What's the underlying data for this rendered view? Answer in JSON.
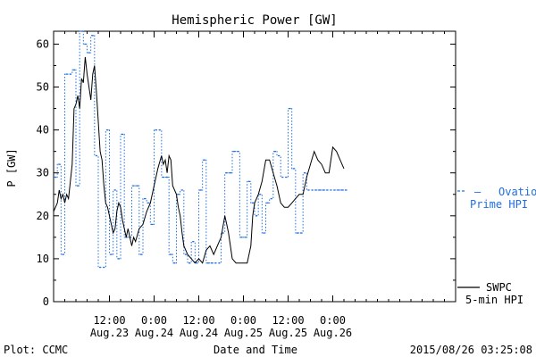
{
  "chart_data": {
    "type": "line",
    "title": "Hemispheric Power [GW]",
    "ylabel": "P [GW]",
    "xlabel": "Date and Time",
    "ylim": [
      0,
      63
    ],
    "yticks": [
      0,
      10,
      20,
      30,
      40,
      50,
      60
    ],
    "xlim": [
      0,
      108
    ],
    "x_unit": "hours since 2015-08-22 21:00",
    "xticks": [
      {
        "x": 15,
        "time": "12:00",
        "date": "Aug.23"
      },
      {
        "x": 27,
        "time": "0:00",
        "date": "Aug.24"
      },
      {
        "x": 39,
        "time": "12:00",
        "date": "Aug.24"
      },
      {
        "x": 51,
        "time": "0:00",
        "date": "Aug.25"
      },
      {
        "x": 63,
        "time": "12:00",
        "date": "Aug.25"
      },
      {
        "x": 75,
        "time": "0:00",
        "date": "Aug.26"
      }
    ],
    "grid": false,
    "series": [
      {
        "name": "SWPC 5-min HPI",
        "color": "#000000",
        "style": "solid",
        "points": [
          [
            0,
            21
          ],
          [
            1,
            23
          ],
          [
            1.5,
            26
          ],
          [
            2,
            24
          ],
          [
            2.5,
            25
          ],
          [
            3,
            23
          ],
          [
            3.5,
            25
          ],
          [
            4,
            24
          ],
          [
            5,
            32
          ],
          [
            5.5,
            45
          ],
          [
            6,
            46
          ],
          [
            6.5,
            48
          ],
          [
            7,
            45
          ],
          [
            7.5,
            52
          ],
          [
            8,
            51
          ],
          [
            8.5,
            57
          ],
          [
            9,
            53
          ],
          [
            9.5,
            50
          ],
          [
            10,
            47
          ],
          [
            10.5,
            53
          ],
          [
            11,
            55
          ],
          [
            11.5,
            49
          ],
          [
            12,
            42
          ],
          [
            12.5,
            35
          ],
          [
            13,
            33
          ],
          [
            13.5,
            27
          ],
          [
            14,
            23
          ],
          [
            14.5,
            22
          ],
          [
            15,
            20
          ],
          [
            15.5,
            18
          ],
          [
            16,
            16
          ],
          [
            16.5,
            17
          ],
          [
            17,
            21
          ],
          [
            17.5,
            23
          ],
          [
            18,
            22
          ],
          [
            18.5,
            19
          ],
          [
            19,
            17
          ],
          [
            19.5,
            15
          ],
          [
            20,
            17
          ],
          [
            20.5,
            15
          ],
          [
            21,
            13
          ],
          [
            21.5,
            15
          ],
          [
            22,
            14
          ],
          [
            23,
            17
          ],
          [
            24,
            18
          ],
          [
            25,
            21
          ],
          [
            26,
            23
          ],
          [
            27,
            27
          ],
          [
            28,
            31
          ],
          [
            29,
            34
          ],
          [
            29.5,
            32
          ],
          [
            30,
            33
          ],
          [
            30.5,
            30
          ],
          [
            31,
            34
          ],
          [
            31.5,
            33
          ],
          [
            32,
            27
          ],
          [
            33,
            25
          ],
          [
            33.5,
            22
          ],
          [
            34,
            20
          ],
          [
            34.5,
            16
          ],
          [
            35,
            13
          ],
          [
            36,
            11
          ],
          [
            37,
            10
          ],
          [
            38,
            9
          ],
          [
            39,
            10
          ],
          [
            40,
            9
          ],
          [
            41,
            12
          ],
          [
            42,
            13
          ],
          [
            43,
            11
          ],
          [
            44,
            13
          ],
          [
            45,
            15
          ],
          [
            46,
            20
          ],
          [
            46.5,
            18
          ],
          [
            47,
            16
          ],
          [
            47.5,
            13
          ],
          [
            48,
            10
          ],
          [
            49,
            9
          ],
          [
            50,
            9
          ],
          [
            51,
            9
          ],
          [
            52,
            9
          ],
          [
            53,
            13
          ],
          [
            53.5,
            20
          ],
          [
            54,
            23
          ],
          [
            55,
            25
          ],
          [
            56,
            28
          ],
          [
            57,
            33
          ],
          [
            58,
            33
          ],
          [
            59,
            30
          ],
          [
            60,
            27
          ],
          [
            61,
            23
          ],
          [
            62,
            22
          ],
          [
            63,
            22
          ],
          [
            64,
            23
          ],
          [
            65,
            24
          ],
          [
            66,
            25
          ],
          [
            67,
            25
          ],
          [
            68,
            29
          ],
          [
            69,
            32
          ],
          [
            70,
            35
          ],
          [
            71,
            33
          ],
          [
            72,
            32
          ],
          [
            73,
            30
          ],
          [
            74,
            30
          ],
          [
            75,
            36
          ],
          [
            76,
            35
          ],
          [
            77,
            33
          ],
          [
            78,
            31
          ]
        ]
      },
      {
        "name": "Ovation Prime HPI",
        "color": "#1f6fe0",
        "style": "dashed",
        "points": [
          [
            0,
            29
          ],
          [
            1,
            32
          ],
          [
            2,
            11
          ],
          [
            3,
            53
          ],
          [
            4,
            53
          ],
          [
            5,
            54
          ],
          [
            6,
            27
          ],
          [
            7,
            63
          ],
          [
            8,
            60
          ],
          [
            9,
            58
          ],
          [
            10,
            62
          ],
          [
            11,
            34
          ],
          [
            12,
            8
          ],
          [
            13,
            8
          ],
          [
            14,
            40
          ],
          [
            15,
            11
          ],
          [
            16,
            26
          ],
          [
            17,
            10
          ],
          [
            18,
            39
          ],
          [
            19,
            15
          ],
          [
            20,
            15
          ],
          [
            21,
            27
          ],
          [
            22,
            27
          ],
          [
            23,
            11
          ],
          [
            24,
            24
          ],
          [
            25,
            23
          ],
          [
            26,
            18
          ],
          [
            27,
            40
          ],
          [
            28,
            40
          ],
          [
            29,
            29
          ],
          [
            30,
            29
          ],
          [
            31,
            11
          ],
          [
            32,
            9
          ],
          [
            33,
            25
          ],
          [
            34,
            26
          ],
          [
            35,
            11
          ],
          [
            36,
            9
          ],
          [
            37,
            14
          ],
          [
            38,
            9
          ],
          [
            39,
            26
          ],
          [
            40,
            33
          ],
          [
            41,
            9
          ],
          [
            42,
            9
          ],
          [
            43,
            9
          ],
          [
            44,
            9
          ],
          [
            45,
            16
          ],
          [
            46,
            30
          ],
          [
            47,
            30
          ],
          [
            48,
            35
          ],
          [
            49,
            35
          ],
          [
            50,
            15
          ],
          [
            51,
            15
          ],
          [
            52,
            28
          ],
          [
            53,
            23
          ],
          [
            54,
            20
          ],
          [
            55,
            25
          ],
          [
            56,
            16
          ],
          [
            57,
            23
          ],
          [
            58,
            24
          ],
          [
            59,
            35
          ],
          [
            60,
            34
          ],
          [
            61,
            29
          ],
          [
            62,
            29
          ],
          [
            63,
            45
          ],
          [
            64,
            31
          ],
          [
            65,
            16
          ],
          [
            66,
            16
          ],
          [
            67,
            30
          ],
          [
            68,
            26
          ],
          [
            69,
            26
          ],
          [
            70,
            26
          ],
          [
            71,
            26
          ],
          [
            72,
            26
          ],
          [
            73,
            26
          ],
          [
            74,
            26
          ],
          [
            75,
            26
          ],
          [
            76,
            26
          ],
          [
            77,
            26
          ],
          [
            78,
            26
          ]
        ]
      }
    ],
    "legend": [
      {
        "label_line1": "Ovation",
        "label_line2": "Prime HPI",
        "color": "#1f6fe0",
        "style": "dashed"
      },
      {
        "label_line1": "SWPC",
        "label_line2": "5-min HPI",
        "color": "#000000",
        "style": "solid"
      }
    ],
    "footer": {
      "left": "Plot: CCMC",
      "center": "Date and Time",
      "right": "2015/08/26 03:25:08"
    }
  }
}
